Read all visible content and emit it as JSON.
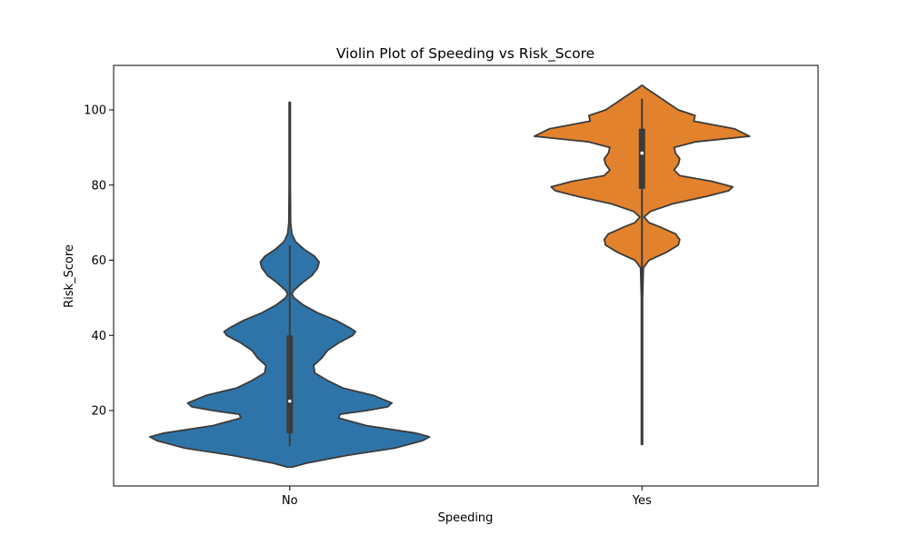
{
  "chart_data": {
    "type": "violin",
    "title": "Violin Plot of Speeding vs Risk_Score",
    "xlabel": "Speeding",
    "ylabel": "Risk_Score",
    "ylim": [
      0,
      112
    ],
    "yticks": [
      20,
      40,
      60,
      80,
      100
    ],
    "grid": false,
    "categories": [
      "No",
      "Yes"
    ],
    "colors": {
      "No": "#2f74a8",
      "Yes": "#e3822d",
      "outline": "#3b3b3b"
    },
    "series": [
      {
        "category": "No",
        "min": 10.5,
        "q1": 14,
        "median": 22.5,
        "q3": 40,
        "max": 102.5,
        "whisker_low": 10.5,
        "whisker_high": 64,
        "density": [
          [
            5,
            0.02
          ],
          [
            6,
            0.12
          ],
          [
            8,
            0.4
          ],
          [
            10,
            0.75
          ],
          [
            12,
            0.95
          ],
          [
            13,
            1.0
          ],
          [
            14,
            0.9
          ],
          [
            16,
            0.55
          ],
          [
            18,
            0.35
          ],
          [
            19,
            0.36
          ],
          [
            20,
            0.55
          ],
          [
            21,
            0.7
          ],
          [
            22,
            0.73
          ],
          [
            24,
            0.6
          ],
          [
            26,
            0.38
          ],
          [
            28,
            0.27
          ],
          [
            30,
            0.18
          ],
          [
            32,
            0.17
          ],
          [
            34,
            0.23
          ],
          [
            36,
            0.27
          ],
          [
            38,
            0.35
          ],
          [
            40,
            0.45
          ],
          [
            41,
            0.47
          ],
          [
            42,
            0.43
          ],
          [
            44,
            0.33
          ],
          [
            46,
            0.2
          ],
          [
            48,
            0.1
          ],
          [
            50,
            0.03
          ],
          [
            51,
            0.015
          ],
          [
            52,
            0.03
          ],
          [
            54,
            0.09
          ],
          [
            56,
            0.16
          ],
          [
            58,
            0.2
          ],
          [
            59.5,
            0.21
          ],
          [
            61,
            0.18
          ],
          [
            63,
            0.1
          ],
          [
            65,
            0.04
          ],
          [
            67,
            0.015
          ],
          [
            70,
            0.006
          ],
          [
            80,
            0.004
          ],
          [
            90,
            0.004
          ],
          [
            102,
            0.004
          ]
        ]
      },
      {
        "category": "Yes",
        "min": 11,
        "q1": 79,
        "median": 88.5,
        "q3": 95,
        "max": 103,
        "whisker_low": 11,
        "whisker_high": 103,
        "density": [
          [
            11,
            0.004
          ],
          [
            20,
            0.004
          ],
          [
            30,
            0.004
          ],
          [
            40,
            0.004
          ],
          [
            50,
            0.004
          ],
          [
            58,
            0.01
          ],
          [
            60,
            0.05
          ],
          [
            62,
            0.17
          ],
          [
            64,
            0.26
          ],
          [
            65.5,
            0.27
          ],
          [
            67,
            0.24
          ],
          [
            69,
            0.12
          ],
          [
            70,
            0.05
          ],
          [
            71.5,
            0.015
          ],
          [
            73,
            0.06
          ],
          [
            75,
            0.22
          ],
          [
            77,
            0.46
          ],
          [
            78.5,
            0.62
          ],
          [
            79.5,
            0.65
          ],
          [
            81,
            0.5
          ],
          [
            82.5,
            0.27
          ],
          [
            84,
            0.23
          ],
          [
            85.5,
            0.26
          ],
          [
            87,
            0.27
          ],
          [
            88.5,
            0.24
          ],
          [
            90,
            0.23
          ],
          [
            91.5,
            0.38
          ],
          [
            93,
            0.77
          ],
          [
            95,
            0.66
          ],
          [
            97,
            0.37
          ],
          [
            98.5,
            0.38
          ],
          [
            100,
            0.26
          ],
          [
            102,
            0.18
          ],
          [
            104,
            0.1
          ],
          [
            106,
            0.02
          ],
          [
            106.5,
            0.0
          ]
        ]
      }
    ]
  }
}
